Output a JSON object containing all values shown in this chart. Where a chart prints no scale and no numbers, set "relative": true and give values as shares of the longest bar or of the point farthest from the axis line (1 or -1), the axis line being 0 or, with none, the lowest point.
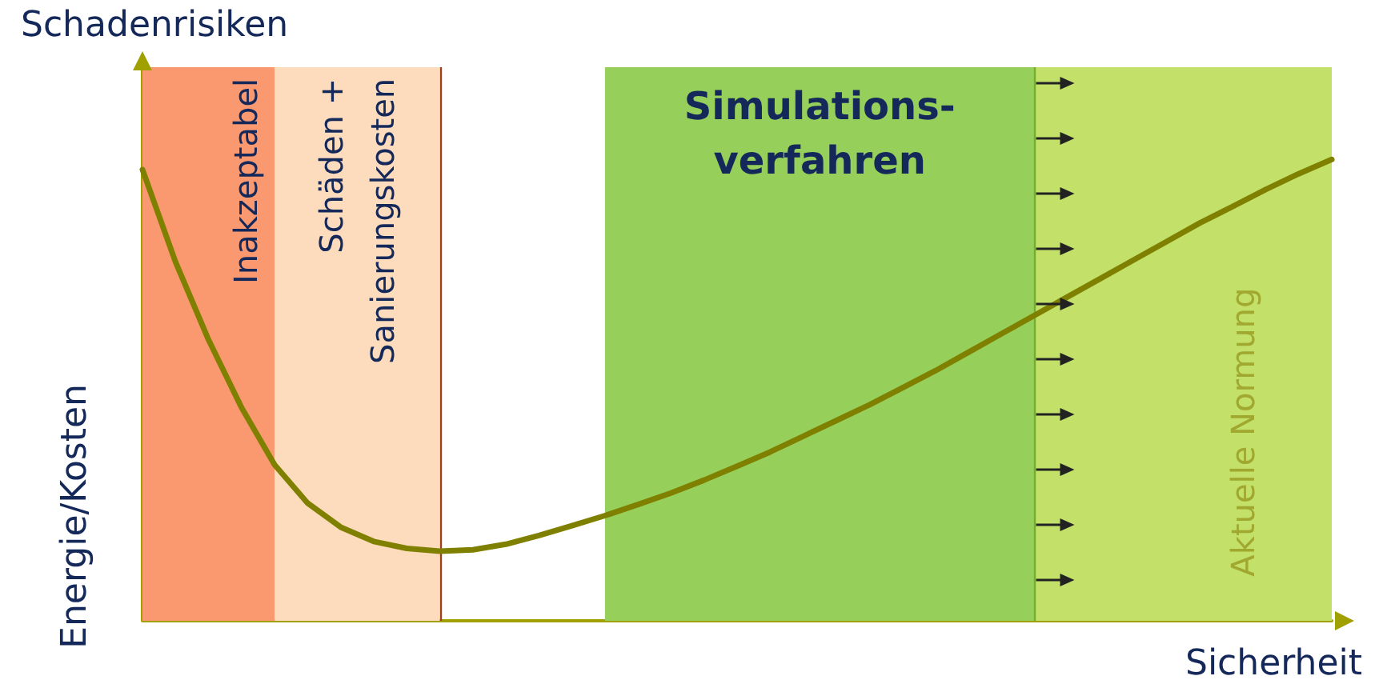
{
  "chart_data": {
    "type": "line",
    "title": "Schadenrisiken",
    "xlabel": "Sicherheit",
    "ylabel": "Energie/Kosten",
    "relative": true,
    "categories": [
      null,
      null,
      null,
      null,
      null,
      null,
      null,
      null,
      null,
      null,
      null,
      null,
      null,
      null,
      null,
      null,
      null,
      null,
      null,
      null,
      null,
      null,
      null,
      null,
      null,
      null,
      null,
      null,
      null,
      null,
      null,
      null,
      null,
      null,
      null,
      null,
      null
    ],
    "marker": "none",
    "line_style": "solid",
    "series": [
      {
        "color": "#808000",
        "values": [
          0.978,
          0.778,
          0.609,
          0.462,
          0.338,
          0.255,
          0.203,
          0.172,
          0.157,
          0.151,
          0.154,
          0.166,
          0.185,
          0.206,
          0.228,
          0.252,
          0.277,
          0.305,
          0.335,
          0.366,
          0.4,
          0.434,
          0.468,
          0.505,
          0.542,
          0.582,
          0.622,
          0.662,
          0.702,
          0.742,
          0.782,
          0.822,
          0.862,
          0.898,
          0.935,
          0.969,
          1
        ]
      }
    ],
    "annotations": [
      "Inakzeptabel",
      "Schäden +\nSanierungskosten",
      "Simulations-\nverfahren",
      "Aktuelle Normung"
    ]
  }
}
